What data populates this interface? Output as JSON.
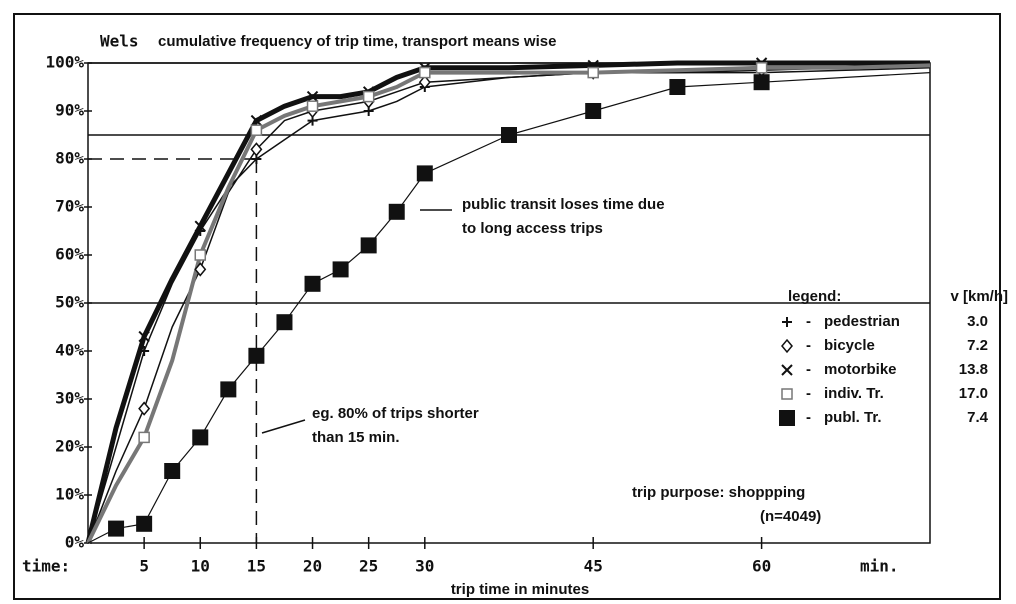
{
  "chart_data": {
    "type": "line",
    "tag": "Wels",
    "title": "cumulative frequency of trip time, transport means wise",
    "x_label": "trip time in minutes",
    "x_start_label": "time:",
    "x_unit_label": "min.",
    "xlim": [
      0,
      75
    ],
    "ylim": [
      0,
      100
    ],
    "xticks": [
      5,
      10,
      15,
      20,
      25,
      30,
      45,
      60
    ],
    "yticks": [
      {
        "value": 0,
        "label": "0%"
      },
      {
        "value": 10,
        "label": "10%"
      },
      {
        "value": 20,
        "label": "20%"
      },
      {
        "value": 30,
        "label": "30%"
      },
      {
        "value": 40,
        "label": "40%"
      },
      {
        "value": 50,
        "label": "50%"
      },
      {
        "value": 60,
        "label": "60%"
      },
      {
        "value": 70,
        "label": "70%"
      },
      {
        "value": 80,
        "label": "80%"
      },
      {
        "value": 90,
        "label": "90%"
      },
      {
        "value": 100,
        "label": "100%"
      }
    ],
    "hlines": [
      100,
      85,
      50
    ],
    "reference": {
      "x": 15,
      "y": 80
    },
    "grid": false,
    "x": [
      0,
      2.5,
      5,
      7.5,
      10,
      12.5,
      15,
      17.5,
      20,
      22.5,
      25,
      27.5,
      30,
      37.5,
      45,
      52.5,
      60,
      67.5,
      75
    ],
    "series": [
      {
        "name": "pedestrian",
        "speed": "3.0",
        "color": "#111",
        "line_width": 1.5,
        "marker": "cross",
        "values": [
          0,
          20,
          40,
          54,
          65,
          74,
          80,
          84,
          88,
          89,
          90,
          92,
          95,
          97,
          98,
          98,
          98,
          98.5,
          99
        ]
      },
      {
        "name": "bicycle",
        "speed": "7.2",
        "color": "#111",
        "line_width": 1.5,
        "marker": "diamond",
        "values": [
          0,
          15,
          28,
          45,
          57,
          73,
          82,
          88,
          90,
          91,
          92,
          94,
          96,
          97,
          98,
          98,
          98.5,
          99,
          99
        ]
      },
      {
        "name": "motorbike",
        "speed": "13.8",
        "color": "#111",
        "line_width": 5,
        "marker": "x",
        "values": [
          0,
          24,
          43,
          55,
          66,
          77,
          88,
          91,
          93,
          93,
          94,
          97,
          99,
          99,
          99.5,
          100,
          100,
          100,
          100
        ]
      },
      {
        "name": "indiv. Tr.",
        "speed": "17.0",
        "color": "#777",
        "line_width": 4,
        "marker": "square-open",
        "values": [
          0,
          12,
          22,
          38,
          60,
          74,
          86,
          89,
          91,
          92,
          93,
          95,
          98,
          98,
          98,
          98.5,
          99,
          99,
          99.5
        ]
      },
      {
        "name": "publ. Tr.",
        "speed": "7.4",
        "color": "#111",
        "line_width": 1.2,
        "marker": "square",
        "values": [
          0,
          3,
          4,
          15,
          22,
          32,
          39,
          46,
          54,
          57,
          62,
          69,
          77,
          85,
          90,
          95,
          96,
          97,
          98
        ]
      }
    ],
    "legend_title": "legend:",
    "legend_unit": "v [km/h]",
    "annotations": [
      "public transit loses time due",
      "to long access trips",
      "eg. 80% of trips shorter",
      "than 15 min.",
      "trip purpose: shoppping",
      "(n=4049)"
    ]
  }
}
